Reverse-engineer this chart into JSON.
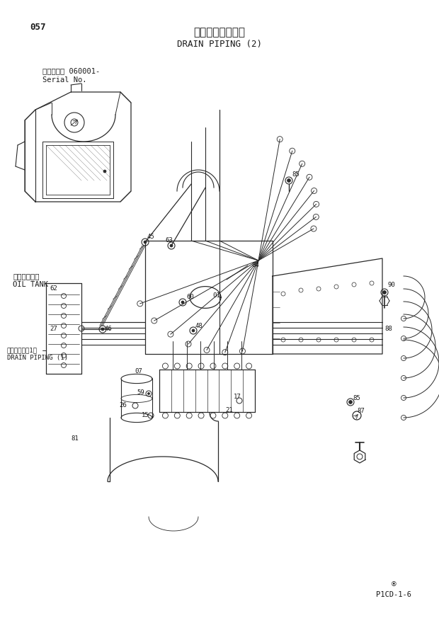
{
  "page_number": "057",
  "title_jp": "ドレン配管（２）",
  "title_en": "DRAIN PIPING (2)",
  "serial_label": "適用号機　 060001-",
  "serial_label2": "Serial No.",
  "footer_code": "P1CD-1-6",
  "background_color": "#ffffff",
  "line_color": "#2a2a2a",
  "text_color": "#1a1a1a",
  "label_left_jp": "オイルタンク",
  "label_left_en": "OIL TANK",
  "label_drain_jp": "ドレン配管（1）",
  "label_drain_en": "DRAIN PIPING (1)"
}
